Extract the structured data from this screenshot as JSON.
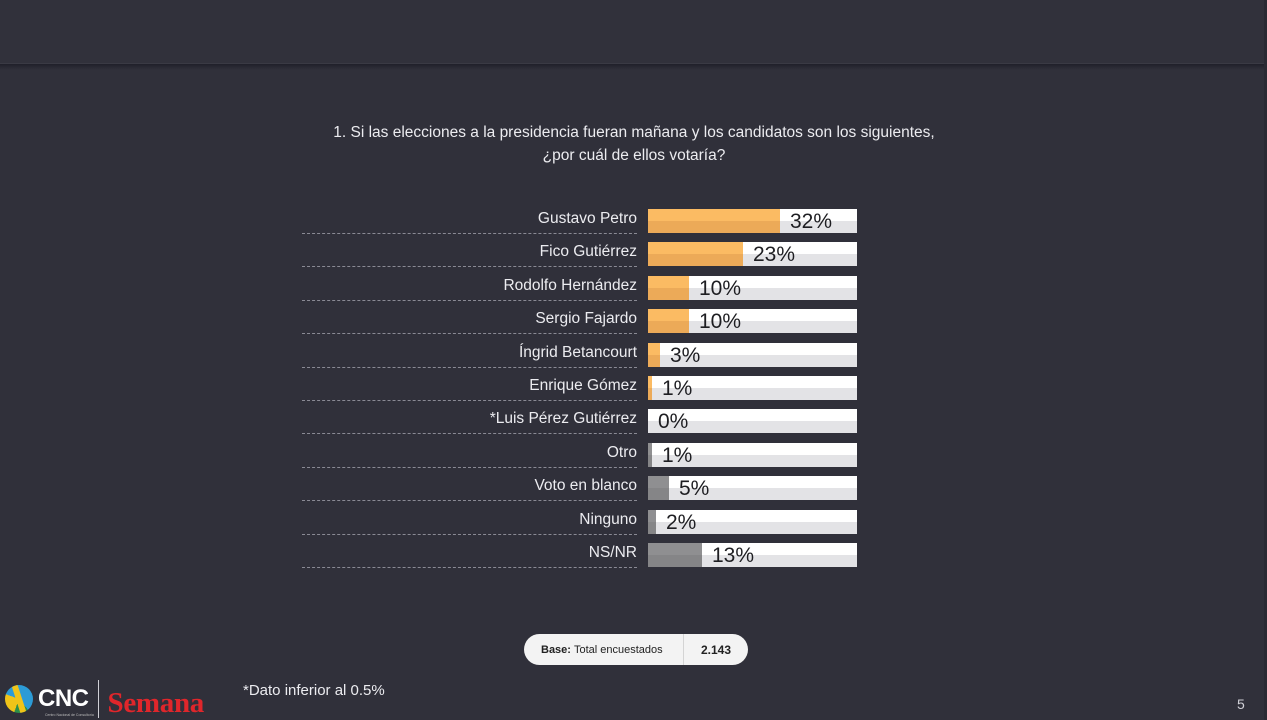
{
  "question": "1. Si las elecciones a la presidencia fueran mañana y los candidatos son los siguientes, ¿por cuál de ellos votaría?",
  "colors": {
    "candidate_bar": "#fbbb63",
    "other_bar": "#8f8f91",
    "track": "#ffffff",
    "background": "#30303a"
  },
  "chart_data": {
    "type": "bar",
    "orientation": "horizontal",
    "title": "1. Si las elecciones a la presidencia fueran mañana y los candidatos son los siguientes, ¿por cuál de ellos votaría?",
    "categories": [
      "Gustavo Petro",
      "Fico Gutiérrez",
      "Rodolfo Hernández",
      "Sergio Fajardo",
      "Íngrid Betancourt",
      "Enrique Gómez",
      "*Luis Pérez Gutiérrez",
      "Otro",
      "Voto en blanco",
      "Ninguno",
      "NS/NR"
    ],
    "values": [
      32,
      23,
      10,
      10,
      3,
      1,
      0,
      1,
      5,
      2,
      13
    ],
    "value_labels": [
      "32%",
      "23%",
      "10%",
      "10%",
      "3%",
      "1%",
      "0%",
      "1%",
      "5%",
      "2%",
      "13%"
    ],
    "bar_groups": [
      "candidate",
      "candidate",
      "candidate",
      "candidate",
      "candidate",
      "candidate",
      "candidate",
      "other",
      "other",
      "other",
      "other"
    ],
    "xlabel": "",
    "ylabel": "",
    "xlim": [
      0,
      100
    ],
    "grid": false,
    "legend": null
  },
  "rows": [
    {
      "label": "Gustavo Petro",
      "value": "32%",
      "pct": 32,
      "kind": "orange"
    },
    {
      "label": "Fico Gutiérrez",
      "value": "23%",
      "pct": 23,
      "kind": "orange"
    },
    {
      "label": "Rodolfo Hernández",
      "value": "10%",
      "pct": 10,
      "kind": "orange"
    },
    {
      "label": "Sergio Fajardo",
      "value": "10%",
      "pct": 10,
      "kind": "orange"
    },
    {
      "label": "Íngrid Betancourt",
      "value": "3%",
      "pct": 3,
      "kind": "orange"
    },
    {
      "label": "Enrique Gómez",
      "value": "1%",
      "pct": 1,
      "kind": "orange"
    },
    {
      "label": "*Luis Pérez Gutiérrez",
      "value": "0%",
      "pct": 0,
      "kind": "orange"
    },
    {
      "label": "Otro",
      "value": "1%",
      "pct": 1,
      "kind": "gray"
    },
    {
      "label": "Voto en blanco",
      "value": "5%",
      "pct": 5,
      "kind": "gray"
    },
    {
      "label": "Ninguno",
      "value": "2%",
      "pct": 2,
      "kind": "gray"
    },
    {
      "label": "NS/NR",
      "value": "13%",
      "pct": 13,
      "kind": "gray"
    }
  ],
  "base": {
    "label_bold": "Base:",
    "label": "Total encuestados",
    "value": "2.143"
  },
  "logos": {
    "cnc": "CNC",
    "cnc_sub": "Centro Nacional de Consultoría",
    "semana": "Semana"
  },
  "footnote": "*Dato inferior al 0.5%",
  "page_number": "5"
}
